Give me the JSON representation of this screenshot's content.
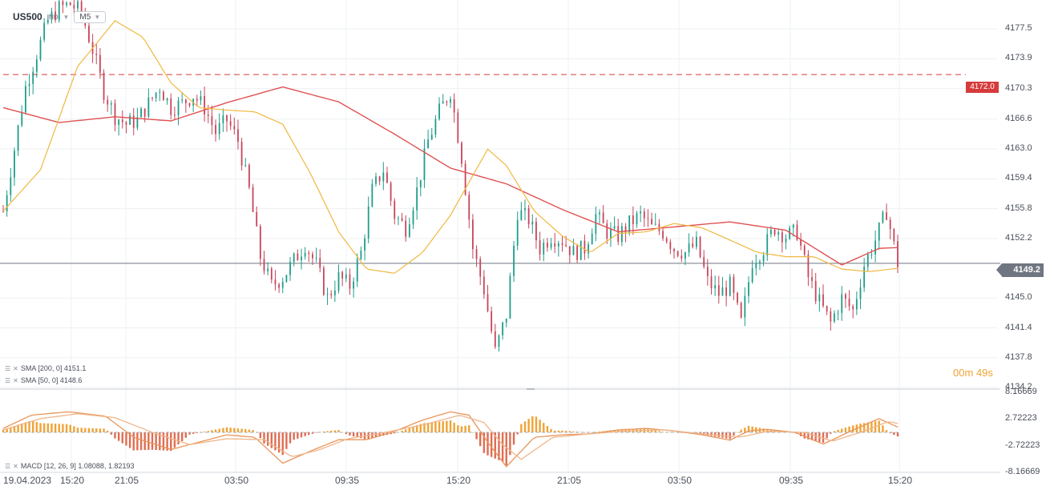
{
  "header": {
    "symbol": "US500",
    "instrument_type": "IND",
    "timeframe": "M5",
    "dropdown_icon": "caret-down-icon"
  },
  "price_axis": {
    "labels": [
      "4177.5",
      "4173.9",
      "4170.3",
      "4166.6",
      "4163.0",
      "4159.4",
      "4155.8",
      "4152.2",
      "4145.0",
      "4141.4",
      "4137.8",
      "4134.2"
    ],
    "current_price": "4149.2",
    "level_label": "4172.0"
  },
  "macd_axis": {
    "labels": [
      "8.16669",
      "2.72223",
      "-2.72223",
      "-8.16669"
    ]
  },
  "time_axis": {
    "labels": [
      "19.04.2023",
      "15:20",
      "21:05",
      "03:50",
      "09:35",
      "15:20",
      "21:05",
      "03:50",
      "09:35",
      "15:20"
    ]
  },
  "countdown": {
    "minutes": "00",
    "m": "m",
    "seconds": "49",
    "s": "s"
  },
  "legends": {
    "sma200": "SMA [200, 0] 4151.1",
    "sma50": "SMA [50, 0] 4148.6",
    "macd": "MACD [12, 26, 9] 1.08088, 1.82193"
  },
  "colors": {
    "bull": "#1f9c8a",
    "bear": "#c8455a",
    "sma200": "#e05252",
    "sma50": "#f0b840",
    "macd_hist": "#f0a335",
    "macd_hist_neg": "#e06d52",
    "macd_line": "#e8955a",
    "macd_signal": "#f0b58a",
    "level": "#d63b3b",
    "current": "#6f7681",
    "grid": "#eef0f3"
  },
  "chart_data": {
    "type": "candlestick",
    "instrument": "US500",
    "timeframe": "M5",
    "price_range": [
      4134.2,
      4181.0
    ],
    "horizontal_level": 4172.0,
    "current_price": 4149.2,
    "close_path": [
      {
        "t": 0,
        "v": 4155.5
      },
      {
        "t": 6,
        "v": 4163.0
      },
      {
        "t": 12,
        "v": 4170.5
      },
      {
        "t": 18,
        "v": 4174.5
      },
      {
        "t": 24,
        "v": 4178.5
      },
      {
        "t": 30,
        "v": 4180.0
      },
      {
        "t": 36,
        "v": 4180.5
      },
      {
        "t": 42,
        "v": 4179.5
      },
      {
        "t": 48,
        "v": 4175.0
      },
      {
        "t": 54,
        "v": 4170.0
      },
      {
        "t": 60,
        "v": 4167.0
      },
      {
        "t": 66,
        "v": 4166.0
      },
      {
        "t": 72,
        "v": 4166.5
      },
      {
        "t": 78,
        "v": 4168.5
      },
      {
        "t": 84,
        "v": 4170.5
      },
      {
        "t": 90,
        "v": 4168.0
      },
      {
        "t": 96,
        "v": 4168.5
      },
      {
        "t": 102,
        "v": 4169.5
      },
      {
        "t": 108,
        "v": 4168.0
      },
      {
        "t": 114,
        "v": 4165.0
      },
      {
        "t": 120,
        "v": 4166.5
      },
      {
        "t": 126,
        "v": 4164.0
      },
      {
        "t": 132,
        "v": 4158.0
      },
      {
        "t": 138,
        "v": 4150.0
      },
      {
        "t": 144,
        "v": 4146.5
      },
      {
        "t": 150,
        "v": 4147.5
      },
      {
        "t": 156,
        "v": 4149.5
      },
      {
        "t": 162,
        "v": 4151.5
      },
      {
        "t": 168,
        "v": 4149.0
      },
      {
        "t": 174,
        "v": 4145.0
      },
      {
        "t": 180,
        "v": 4147.5
      },
      {
        "t": 186,
        "v": 4146.5
      },
      {
        "t": 192,
        "v": 4150.5
      },
      {
        "t": 198,
        "v": 4158.0
      },
      {
        "t": 204,
        "v": 4160.5
      },
      {
        "t": 210,
        "v": 4155.0
      },
      {
        "t": 216,
        "v": 4153.5
      },
      {
        "t": 222,
        "v": 4158.0
      },
      {
        "t": 228,
        "v": 4164.0
      },
      {
        "t": 234,
        "v": 4167.5
      },
      {
        "t": 240,
        "v": 4170.0
      },
      {
        "t": 246,
        "v": 4162.0
      },
      {
        "t": 252,
        "v": 4151.0
      },
      {
        "t": 258,
        "v": 4146.0
      },
      {
        "t": 264,
        "v": 4138.5
      },
      {
        "t": 270,
        "v": 4143.0
      },
      {
        "t": 276,
        "v": 4155.5
      },
      {
        "t": 282,
        "v": 4154.5
      },
      {
        "t": 288,
        "v": 4151.0
      },
      {
        "t": 294,
        "v": 4152.5
      },
      {
        "t": 300,
        "v": 4152.0
      },
      {
        "t": 306,
        "v": 4150.5
      },
      {
        "t": 312,
        "v": 4151.0
      },
      {
        "t": 318,
        "v": 4155.0
      },
      {
        "t": 324,
        "v": 4153.0
      },
      {
        "t": 330,
        "v": 4152.5
      },
      {
        "t": 336,
        "v": 4154.0
      },
      {
        "t": 342,
        "v": 4155.0
      },
      {
        "t": 348,
        "v": 4153.5
      },
      {
        "t": 354,
        "v": 4153.0
      },
      {
        "t": 360,
        "v": 4151.0
      },
      {
        "t": 366,
        "v": 4150.5
      },
      {
        "t": 372,
        "v": 4151.5
      },
      {
        "t": 378,
        "v": 4147.0
      },
      {
        "t": 384,
        "v": 4145.5
      },
      {
        "t": 390,
        "v": 4146.5
      },
      {
        "t": 396,
        "v": 4142.0
      },
      {
        "t": 402,
        "v": 4149.5
      },
      {
        "t": 408,
        "v": 4151.0
      },
      {
        "t": 414,
        "v": 4153.5
      },
      {
        "t": 420,
        "v": 4152.5
      },
      {
        "t": 426,
        "v": 4153.0
      },
      {
        "t": 432,
        "v": 4147.5
      },
      {
        "t": 438,
        "v": 4144.5
      },
      {
        "t": 444,
        "v": 4142.0
      },
      {
        "t": 450,
        "v": 4145.0
      },
      {
        "t": 456,
        "v": 4143.5
      },
      {
        "t": 462,
        "v": 4149.0
      },
      {
        "t": 468,
        "v": 4152.0
      },
      {
        "t": 474,
        "v": 4155.5
      },
      {
        "t": 480,
        "v": 4149.2
      }
    ],
    "series": [
      {
        "name": "SMA [200, 0]",
        "points": [
          {
            "t": 0,
            "v": 4168.0
          },
          {
            "t": 30,
            "v": 4166.2
          },
          {
            "t": 60,
            "v": 4166.9
          },
          {
            "t": 90,
            "v": 4166.4
          },
          {
            "t": 120,
            "v": 4168.6
          },
          {
            "t": 150,
            "v": 4170.5
          },
          {
            "t": 180,
            "v": 4168.7
          },
          {
            "t": 210,
            "v": 4164.8
          },
          {
            "t": 240,
            "v": 4160.7
          },
          {
            "t": 270,
            "v": 4158.8
          },
          {
            "t": 300,
            "v": 4155.7
          },
          {
            "t": 330,
            "v": 4153.0
          },
          {
            "t": 360,
            "v": 4153.6
          },
          {
            "t": 390,
            "v": 4154.2
          },
          {
            "t": 420,
            "v": 4153.2
          },
          {
            "t": 450,
            "v": 4149.0
          },
          {
            "t": 470,
            "v": 4151.0
          },
          {
            "t": 480,
            "v": 4151.1
          }
        ]
      },
      {
        "name": "SMA [50, 0]",
        "points": [
          {
            "t": 0,
            "v": 4155.5
          },
          {
            "t": 20,
            "v": 4160.5
          },
          {
            "t": 40,
            "v": 4173.0
          },
          {
            "t": 60,
            "v": 4178.5
          },
          {
            "t": 75,
            "v": 4176.5
          },
          {
            "t": 90,
            "v": 4171.0
          },
          {
            "t": 105,
            "v": 4168.0
          },
          {
            "t": 120,
            "v": 4167.7
          },
          {
            "t": 135,
            "v": 4167.5
          },
          {
            "t": 150,
            "v": 4166.0
          },
          {
            "t": 165,
            "v": 4160.0
          },
          {
            "t": 180,
            "v": 4153.0
          },
          {
            "t": 195,
            "v": 4148.5
          },
          {
            "t": 210,
            "v": 4148.0
          },
          {
            "t": 225,
            "v": 4150.5
          },
          {
            "t": 240,
            "v": 4155.0
          },
          {
            "t": 250,
            "v": 4159.0
          },
          {
            "t": 260,
            "v": 4163.0
          },
          {
            "t": 270,
            "v": 4161.0
          },
          {
            "t": 285,
            "v": 4155.5
          },
          {
            "t": 300,
            "v": 4152.5
          },
          {
            "t": 315,
            "v": 4150.5
          },
          {
            "t": 330,
            "v": 4152.8
          },
          {
            "t": 345,
            "v": 4153.0
          },
          {
            "t": 360,
            "v": 4154.0
          },
          {
            "t": 375,
            "v": 4153.5
          },
          {
            "t": 390,
            "v": 4152.0
          },
          {
            "t": 405,
            "v": 4150.5
          },
          {
            "t": 420,
            "v": 4150.0
          },
          {
            "t": 435,
            "v": 4150.0
          },
          {
            "t": 450,
            "v": 4148.5
          },
          {
            "t": 465,
            "v": 4148.2
          },
          {
            "t": 480,
            "v": 4148.6
          }
        ]
      }
    ],
    "macd": {
      "range": [
        -8.16669,
        8.16669
      ],
      "macd_line": [
        {
          "t": 0,
          "v": 0.8
        },
        {
          "t": 15,
          "v": 3.5
        },
        {
          "t": 35,
          "v": 4.2
        },
        {
          "t": 55,
          "v": 3.3
        },
        {
          "t": 70,
          "v": -1.0
        },
        {
          "t": 90,
          "v": -3.5
        },
        {
          "t": 105,
          "v": -2.0
        },
        {
          "t": 120,
          "v": -0.5
        },
        {
          "t": 135,
          "v": -1.0
        },
        {
          "t": 150,
          "v": -6.3
        },
        {
          "t": 165,
          "v": -3.8
        },
        {
          "t": 180,
          "v": -1.5
        },
        {
          "t": 195,
          "v": -1.5
        },
        {
          "t": 210,
          "v": 0.2
        },
        {
          "t": 225,
          "v": 2.5
        },
        {
          "t": 240,
          "v": 4.2
        },
        {
          "t": 250,
          "v": 3.5
        },
        {
          "t": 260,
          "v": -2.0
        },
        {
          "t": 270,
          "v": -7.0
        },
        {
          "t": 285,
          "v": -1.0
        },
        {
          "t": 300,
          "v": -0.5
        },
        {
          "t": 315,
          "v": -0.3
        },
        {
          "t": 330,
          "v": 0.5
        },
        {
          "t": 345,
          "v": 0.8
        },
        {
          "t": 360,
          "v": 0.3
        },
        {
          "t": 375,
          "v": -0.5
        },
        {
          "t": 390,
          "v": -1.6
        },
        {
          "t": 400,
          "v": 0.3
        },
        {
          "t": 410,
          "v": 0.6
        },
        {
          "t": 425,
          "v": 0.0
        },
        {
          "t": 440,
          "v": -2.4
        },
        {
          "t": 455,
          "v": 0.3
        },
        {
          "t": 470,
          "v": 2.8
        },
        {
          "t": 480,
          "v": 1.08
        }
      ],
      "signal_line": [
        {
          "t": 0,
          "v": 0.5
        },
        {
          "t": 20,
          "v": 2.8
        },
        {
          "t": 40,
          "v": 3.8
        },
        {
          "t": 60,
          "v": 3.0
        },
        {
          "t": 80,
          "v": 0.0
        },
        {
          "t": 100,
          "v": -2.5
        },
        {
          "t": 120,
          "v": -1.3
        },
        {
          "t": 140,
          "v": -1.5
        },
        {
          "t": 155,
          "v": -5.0
        },
        {
          "t": 170,
          "v": -3.5
        },
        {
          "t": 185,
          "v": -1.3
        },
        {
          "t": 205,
          "v": 0.0
        },
        {
          "t": 225,
          "v": 1.5
        },
        {
          "t": 245,
          "v": 3.5
        },
        {
          "t": 258,
          "v": 2.0
        },
        {
          "t": 268,
          "v": -2.5
        },
        {
          "t": 278,
          "v": -5.5
        },
        {
          "t": 295,
          "v": -1.0
        },
        {
          "t": 315,
          "v": -0.3
        },
        {
          "t": 335,
          "v": 0.3
        },
        {
          "t": 355,
          "v": 0.5
        },
        {
          "t": 375,
          "v": -0.3
        },
        {
          "t": 395,
          "v": -1.0
        },
        {
          "t": 410,
          "v": 0.2
        },
        {
          "t": 430,
          "v": 0.0
        },
        {
          "t": 445,
          "v": -1.8
        },
        {
          "t": 460,
          "v": 0.0
        },
        {
          "t": 475,
          "v": 2.2
        },
        {
          "t": 480,
          "v": 1.82
        }
      ]
    }
  }
}
